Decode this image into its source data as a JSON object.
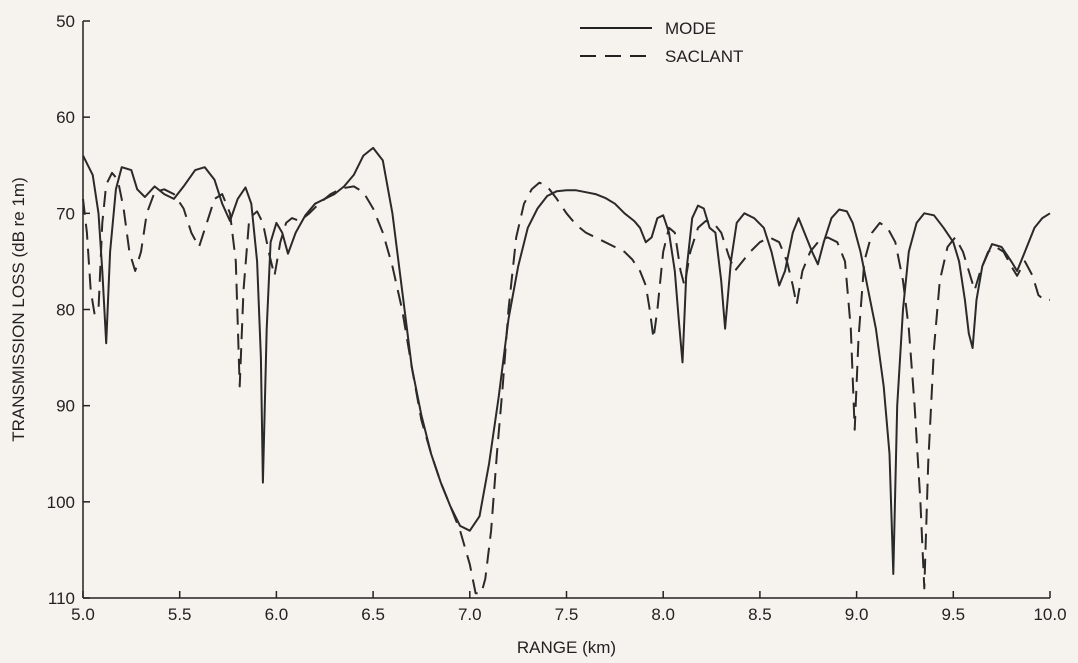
{
  "chart_data": {
    "type": "line",
    "xlabel": "RANGE (km)",
    "ylabel": "TRANSMISSION LOSS (dB re 1m)",
    "xlim": [
      5.0,
      10.0
    ],
    "ylim": [
      50,
      110
    ],
    "y_inverted": true,
    "grid": false,
    "legend_position": "top-right",
    "x_ticks": [
      "5.0",
      "5.5",
      "6.0",
      "6.5",
      "7.0",
      "7.5",
      "8.0",
      "8.5",
      "9.0",
      "9.5",
      "10.0"
    ],
    "y_ticks": [
      "50",
      "60",
      "70",
      "80",
      "90",
      "100",
      "110"
    ],
    "series": [
      {
        "name": "MODE",
        "style": "solid",
        "color": "#2a2a2a",
        "points": [
          [
            5.0,
            64
          ],
          [
            5.05,
            66
          ],
          [
            5.08,
            70
          ],
          [
            5.1,
            76
          ],
          [
            5.12,
            83.5
          ],
          [
            5.14,
            74
          ],
          [
            5.17,
            67.5
          ],
          [
            5.2,
            65.2
          ],
          [
            5.25,
            65.5
          ],
          [
            5.28,
            67.5
          ],
          [
            5.32,
            68.3
          ],
          [
            5.37,
            67.2
          ],
          [
            5.42,
            68.0
          ],
          [
            5.47,
            68.5
          ],
          [
            5.52,
            67.2
          ],
          [
            5.58,
            65.5
          ],
          [
            5.63,
            65.2
          ],
          [
            5.68,
            66.5
          ],
          [
            5.72,
            69
          ],
          [
            5.76,
            70.8
          ],
          [
            5.8,
            68.5
          ],
          [
            5.84,
            67.3
          ],
          [
            5.87,
            69
          ],
          [
            5.9,
            75
          ],
          [
            5.92,
            85
          ],
          [
            5.93,
            98
          ],
          [
            5.95,
            82
          ],
          [
            5.97,
            73
          ],
          [
            6.0,
            71
          ],
          [
            6.03,
            72
          ],
          [
            6.06,
            74.2
          ],
          [
            6.1,
            72
          ],
          [
            6.15,
            70.2
          ],
          [
            6.2,
            69
          ],
          [
            6.25,
            68.5
          ],
          [
            6.3,
            68
          ],
          [
            6.35,
            67.2
          ],
          [
            6.4,
            66
          ],
          [
            6.45,
            64
          ],
          [
            6.5,
            63.2
          ],
          [
            6.55,
            64.5
          ],
          [
            6.6,
            70
          ],
          [
            6.65,
            78
          ],
          [
            6.7,
            86
          ],
          [
            6.75,
            91
          ],
          [
            6.8,
            95
          ],
          [
            6.85,
            98
          ],
          [
            6.9,
            100.5
          ],
          [
            6.95,
            102.5
          ],
          [
            7.0,
            103
          ],
          [
            7.05,
            101.5
          ],
          [
            7.1,
            96
          ],
          [
            7.15,
            89
          ],
          [
            7.2,
            81
          ],
          [
            7.25,
            75.5
          ],
          [
            7.3,
            71.5
          ],
          [
            7.35,
            69.5
          ],
          [
            7.4,
            68.2
          ],
          [
            7.45,
            67.7
          ],
          [
            7.5,
            67.6
          ],
          [
            7.55,
            67.6
          ],
          [
            7.6,
            67.8
          ],
          [
            7.65,
            68
          ],
          [
            7.7,
            68.4
          ],
          [
            7.75,
            69
          ],
          [
            7.8,
            70
          ],
          [
            7.85,
            70.8
          ],
          [
            7.88,
            71.5
          ],
          [
            7.91,
            73
          ],
          [
            7.94,
            72.5
          ],
          [
            7.97,
            70.5
          ],
          [
            8.0,
            70.2
          ],
          [
            8.03,
            72
          ],
          [
            8.06,
            76
          ],
          [
            8.08,
            81
          ],
          [
            8.1,
            85.5
          ],
          [
            8.12,
            76
          ],
          [
            8.15,
            70.5
          ],
          [
            8.18,
            69.2
          ],
          [
            8.21,
            69.5
          ],
          [
            8.24,
            71.5
          ],
          [
            8.27,
            72
          ],
          [
            8.3,
            77
          ],
          [
            8.32,
            82
          ],
          [
            8.35,
            75
          ],
          [
            8.38,
            71
          ],
          [
            8.42,
            70
          ],
          [
            8.47,
            70.5
          ],
          [
            8.52,
            71.5
          ],
          [
            8.56,
            74
          ],
          [
            8.6,
            77.5
          ],
          [
            8.63,
            76
          ],
          [
            8.67,
            72
          ],
          [
            8.7,
            70.5
          ],
          [
            8.73,
            72
          ],
          [
            8.77,
            74
          ],
          [
            8.8,
            75.3
          ],
          [
            8.83,
            73
          ],
          [
            8.87,
            70.5
          ],
          [
            8.91,
            69.6
          ],
          [
            8.95,
            69.8
          ],
          [
            8.98,
            71
          ],
          [
            9.02,
            74
          ],
          [
            9.06,
            78
          ],
          [
            9.1,
            82
          ],
          [
            9.14,
            88
          ],
          [
            9.17,
            95
          ],
          [
            9.19,
            107.5
          ],
          [
            9.21,
            90
          ],
          [
            9.24,
            80
          ],
          [
            9.27,
            74
          ],
          [
            9.31,
            71
          ],
          [
            9.35,
            70
          ],
          [
            9.4,
            70.2
          ],
          [
            9.45,
            71.5
          ],
          [
            9.5,
            73
          ],
          [
            9.53,
            75
          ],
          [
            9.56,
            79
          ],
          [
            9.58,
            82.5
          ],
          [
            9.6,
            84
          ],
          [
            9.62,
            79
          ],
          [
            9.65,
            75.5
          ],
          [
            9.7,
            73.2
          ],
          [
            9.75,
            73.5
          ],
          [
            9.8,
            75
          ],
          [
            9.83,
            76
          ],
          [
            9.87,
            74
          ],
          [
            9.92,
            71.5
          ],
          [
            9.96,
            70.5
          ],
          [
            10.0,
            70
          ]
        ]
      },
      {
        "name": "SACLANT",
        "style": "dashed",
        "color": "#2a2a2a",
        "points": [
          [
            5.0,
            68.5
          ],
          [
            5.02,
            72
          ],
          [
            5.04,
            78
          ],
          [
            5.06,
            80.5
          ],
          [
            5.08,
            80
          ],
          [
            5.1,
            71
          ],
          [
            5.12,
            67
          ],
          [
            5.15,
            65.8
          ],
          [
            5.18,
            66.5
          ],
          [
            5.21,
            69.5
          ],
          [
            5.24,
            74
          ],
          [
            5.27,
            76
          ],
          [
            5.3,
            74
          ],
          [
            5.33,
            70
          ],
          [
            5.37,
            67.8
          ],
          [
            5.42,
            67.5
          ],
          [
            5.47,
            68
          ],
          [
            5.52,
            69.5
          ],
          [
            5.56,
            72
          ],
          [
            5.6,
            73.5
          ],
          [
            5.64,
            71
          ],
          [
            5.68,
            68.5
          ],
          [
            5.72,
            68
          ],
          [
            5.76,
            70
          ],
          [
            5.79,
            75
          ],
          [
            5.81,
            88
          ],
          [
            5.83,
            78
          ],
          [
            5.86,
            70.5
          ],
          [
            5.9,
            69.8
          ],
          [
            5.93,
            71
          ],
          [
            5.96,
            74
          ],
          [
            5.99,
            76.5
          ],
          [
            6.02,
            73
          ],
          [
            6.05,
            71
          ],
          [
            6.08,
            70.5
          ],
          [
            6.12,
            70.8
          ],
          [
            6.17,
            70
          ],
          [
            6.22,
            69
          ],
          [
            6.28,
            68
          ],
          [
            6.34,
            67.4
          ],
          [
            6.4,
            67.2
          ],
          [
            6.45,
            67.8
          ],
          [
            6.5,
            69.5
          ],
          [
            6.55,
            72
          ],
          [
            6.6,
            75.5
          ],
          [
            6.65,
            80
          ],
          [
            6.7,
            86
          ],
          [
            6.75,
            91.5
          ],
          [
            6.8,
            95
          ],
          [
            6.85,
            98
          ],
          [
            6.9,
            100.5
          ],
          [
            6.95,
            103
          ],
          [
            7.0,
            106.5
          ],
          [
            7.03,
            109.5
          ],
          [
            7.06,
            109.5
          ],
          [
            7.08,
            108
          ],
          [
            7.11,
            103
          ],
          [
            7.14,
            95
          ],
          [
            7.17,
            88
          ],
          [
            7.2,
            80
          ],
          [
            7.24,
            72.5
          ],
          [
            7.28,
            69
          ],
          [
            7.32,
            67.5
          ],
          [
            7.36,
            66.8
          ],
          [
            7.4,
            67.2
          ],
          [
            7.45,
            68.5
          ],
          [
            7.5,
            70
          ],
          [
            7.55,
            71.2
          ],
          [
            7.6,
            72
          ],
          [
            7.65,
            72.5
          ],
          [
            7.7,
            73
          ],
          [
            7.75,
            73.5
          ],
          [
            7.8,
            74
          ],
          [
            7.84,
            74.8
          ],
          [
            7.88,
            76
          ],
          [
            7.91,
            77.5
          ],
          [
            7.93,
            80
          ],
          [
            7.95,
            83
          ],
          [
            7.97,
            80
          ],
          [
            8.0,
            74
          ],
          [
            8.03,
            71.5
          ],
          [
            8.06,
            72
          ],
          [
            8.09,
            76
          ],
          [
            8.11,
            77.5
          ],
          [
            8.14,
            74
          ],
          [
            8.18,
            71.5
          ],
          [
            8.22,
            70.8
          ],
          [
            8.26,
            71
          ],
          [
            8.3,
            72
          ],
          [
            8.34,
            74.5
          ],
          [
            8.37,
            76
          ],
          [
            8.41,
            75
          ],
          [
            8.45,
            74
          ],
          [
            8.5,
            73
          ],
          [
            8.55,
            72.5
          ],
          [
            8.6,
            73
          ],
          [
            8.64,
            75
          ],
          [
            8.67,
            77.5
          ],
          [
            8.69,
            79.5
          ],
          [
            8.72,
            76
          ],
          [
            8.76,
            74
          ],
          [
            8.8,
            73
          ],
          [
            8.85,
            72.5
          ],
          [
            8.9,
            73
          ],
          [
            8.94,
            75
          ],
          [
            8.97,
            82
          ],
          [
            8.99,
            92.5
          ],
          [
            9.01,
            83
          ],
          [
            9.04,
            75
          ],
          [
            9.08,
            72
          ],
          [
            9.12,
            71
          ],
          [
            9.16,
            71.5
          ],
          [
            9.2,
            73
          ],
          [
            9.24,
            77
          ],
          [
            9.27,
            82
          ],
          [
            9.3,
            90
          ],
          [
            9.33,
            100
          ],
          [
            9.35,
            109
          ],
          [
            9.37,
            96
          ],
          [
            9.4,
            84
          ],
          [
            9.43,
            77
          ],
          [
            9.47,
            73.5
          ],
          [
            9.51,
            72.5
          ],
          [
            9.55,
            74
          ],
          [
            9.58,
            76
          ],
          [
            9.61,
            78
          ],
          [
            9.64,
            76
          ],
          [
            9.68,
            74
          ],
          [
            9.72,
            73.5
          ],
          [
            9.76,
            74
          ],
          [
            9.8,
            75.5
          ],
          [
            9.83,
            76.5
          ],
          [
            9.87,
            75
          ],
          [
            9.91,
            76.5
          ],
          [
            9.94,
            78.5
          ],
          [
            9.97,
            79
          ],
          [
            10.0,
            79
          ]
        ]
      }
    ]
  }
}
